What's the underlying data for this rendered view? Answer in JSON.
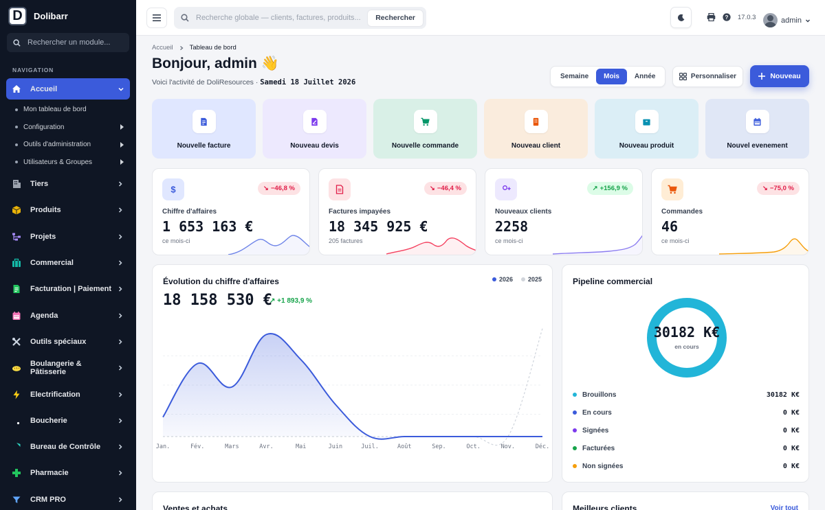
{
  "brand": {
    "logo_letter": "D",
    "name": "Dolibarr"
  },
  "sidebar": {
    "search_placeholder": "Rechercher un module...",
    "nav_title": "NAVIGATION",
    "active": {
      "label": "Accueil",
      "icon": "home-icon"
    },
    "subitems": [
      {
        "label": "Mon tableau de bord",
        "has_children": false
      },
      {
        "label": "Configuration",
        "has_children": true
      },
      {
        "label": "Outils d'administration",
        "has_children": true
      },
      {
        "label": "Utilisateurs & Groupes",
        "has_children": true
      }
    ],
    "items": [
      {
        "label": "Tiers",
        "icon": "building-icon",
        "color": "#9ca3af"
      },
      {
        "label": "Produits",
        "icon": "box-icon",
        "color": "#eab308"
      },
      {
        "label": "Projets",
        "icon": "project-icon",
        "color": "#a78bfa"
      },
      {
        "label": "Commercial",
        "icon": "briefcase-icon",
        "color": "#14b8a6"
      },
      {
        "label": "Facturation | Paiement",
        "icon": "invoice-icon",
        "color": "#22c55e"
      },
      {
        "label": "Agenda",
        "icon": "calendar-icon",
        "color": "#f472b6"
      },
      {
        "label": "Outils spéciaux",
        "icon": "tools-icon",
        "color": "#cbd5e1"
      },
      {
        "label": "Boulangerie & Pâtisserie",
        "icon": "bread-icon",
        "color": "#fde047"
      },
      {
        "label": "Electrification",
        "icon": "bolt-icon",
        "color": "#facc15"
      },
      {
        "label": "Boucherie",
        "icon": "meat-icon",
        "color": "#dc2626"
      },
      {
        "label": "Bureau de Contrôle",
        "icon": "shield-icon",
        "color": "#2dd4bf"
      },
      {
        "label": "Pharmacie",
        "icon": "cross-icon",
        "color": "#22c55e"
      },
      {
        "label": "CRM PRO",
        "icon": "funnel-icon",
        "color": "#60a5fa"
      }
    ]
  },
  "topbar": {
    "search_placeholder": "Recherche globale — clients, factures, produits...",
    "search_button": "Rechercher",
    "version": "17.0.3",
    "user": "admin"
  },
  "breadcrumb": {
    "home": "Accueil",
    "current": "Tableau de bord"
  },
  "greeting": {
    "title": "Bonjour, admin 👋",
    "subtitle": "Voici l'activité de DoliResources · ",
    "date": "Samedi 18 Juillet 2026"
  },
  "period": {
    "options": [
      "Semaine",
      "Mois",
      "Année"
    ],
    "selected": "Mois"
  },
  "actions": {
    "customize": "Personnaliser",
    "new": "Nouveau"
  },
  "quick_actions": [
    {
      "label": "Nouvelle facture",
      "icon": "invoice-icon",
      "bg": "#e0e7ff",
      "color": "#3b5bdb"
    },
    {
      "label": "Nouveau devis",
      "icon": "quote-icon",
      "bg": "#ede9fe",
      "color": "#7c3aed"
    },
    {
      "label": "Nouvelle commande",
      "icon": "cart-icon",
      "bg": "#d9f0e7",
      "color": "#059669"
    },
    {
      "label": "Nouveau client",
      "icon": "client-icon",
      "bg": "#faecdd",
      "color": "#ea580c"
    },
    {
      "label": "Nouveau produit",
      "icon": "product-icon",
      "bg": "#dbeef6",
      "color": "#0891b2"
    },
    {
      "label": "Nouvel evenement",
      "icon": "calendar-icon",
      "bg": "#e0e7f6",
      "color": "#3b5bdb"
    }
  ],
  "kpis": [
    {
      "label": "Chiffre d'affaires",
      "value": "1 653 163 €",
      "sub": "ce mois-ci",
      "badge": "−46,8 %",
      "trend": "down",
      "icon": "dollar-icon",
      "icon_bg": "#e0e7ff",
      "icon_color": "#3b5bdb",
      "spark_color": "#6d83e8"
    },
    {
      "label": "Factures impayées",
      "value": "18 345 925 €",
      "sub": "205 factures",
      "badge": "−46,4 %",
      "trend": "down",
      "icon": "document-icon",
      "icon_bg": "#fde2e4",
      "icon_color": "#e11d48",
      "spark_color": "#f43f5e"
    },
    {
      "label": "Nouveaux clients",
      "value": "2258",
      "sub": "ce mois-ci",
      "badge": "+156,9 %",
      "trend": "up",
      "icon": "user-plus-icon",
      "icon_bg": "#ede9fe",
      "icon_color": "#7c3aed",
      "spark_color": "#8b7cf0"
    },
    {
      "label": "Commandes",
      "value": "46",
      "sub": "ce mois-ci",
      "badge": "−75,0 %",
      "trend": "down",
      "icon": "cart-icon",
      "icon_bg": "#ffedd5",
      "icon_color": "#ea580c",
      "spark_color": "#f59e0b"
    }
  ],
  "revenue_chart": {
    "title": "Évolution du chiffre d'affaires",
    "total": "18 158 530 €",
    "badge": "+1 893,9 %",
    "legend": [
      {
        "name": "2026",
        "color": "#3b5bdb"
      },
      {
        "name": "2025",
        "color": "#d1d5db"
      }
    ]
  },
  "chart_data": {
    "type": "area",
    "categories": [
      "Jan.",
      "Fév.",
      "Mars",
      "Avr.",
      "Mai",
      "Juin",
      "Juil.",
      "Août",
      "Sep.",
      "Oct.",
      "Nov.",
      "Déc."
    ],
    "series": [
      {
        "name": "2026",
        "values": [
          1.0,
          3.75,
          2.55,
          5.25,
          3.95,
          1.65,
          0,
          0,
          0,
          0,
          0,
          0
        ]
      },
      {
        "name": "2025",
        "values": [
          0,
          0,
          0,
          0,
          0,
          0,
          0,
          0,
          0,
          0,
          0,
          5.55
        ]
      }
    ],
    "ylim": [
      0,
      6
    ],
    "grid": true
  },
  "pipeline": {
    "title": "Pipeline commercial",
    "center_value": "30182 K€",
    "center_label": "en cours",
    "ring_color": "#22b5d8",
    "rows": [
      {
        "label": "Brouillons",
        "value": "30182 K€",
        "color": "#22b5d8"
      },
      {
        "label": "En cours",
        "value": "0 K€",
        "color": "#3b5bdb"
      },
      {
        "label": "Signées",
        "value": "0 K€",
        "color": "#7c3aed"
      },
      {
        "label": "Facturées",
        "value": "0 K€",
        "color": "#16a34a"
      },
      {
        "label": "Non signées",
        "value": "0 K€",
        "color": "#f59e0b"
      }
    ]
  },
  "bottom": {
    "sales_title": "Ventes et achats",
    "clients_title": "Meilleurs clients",
    "see_all": "Voir tout"
  }
}
